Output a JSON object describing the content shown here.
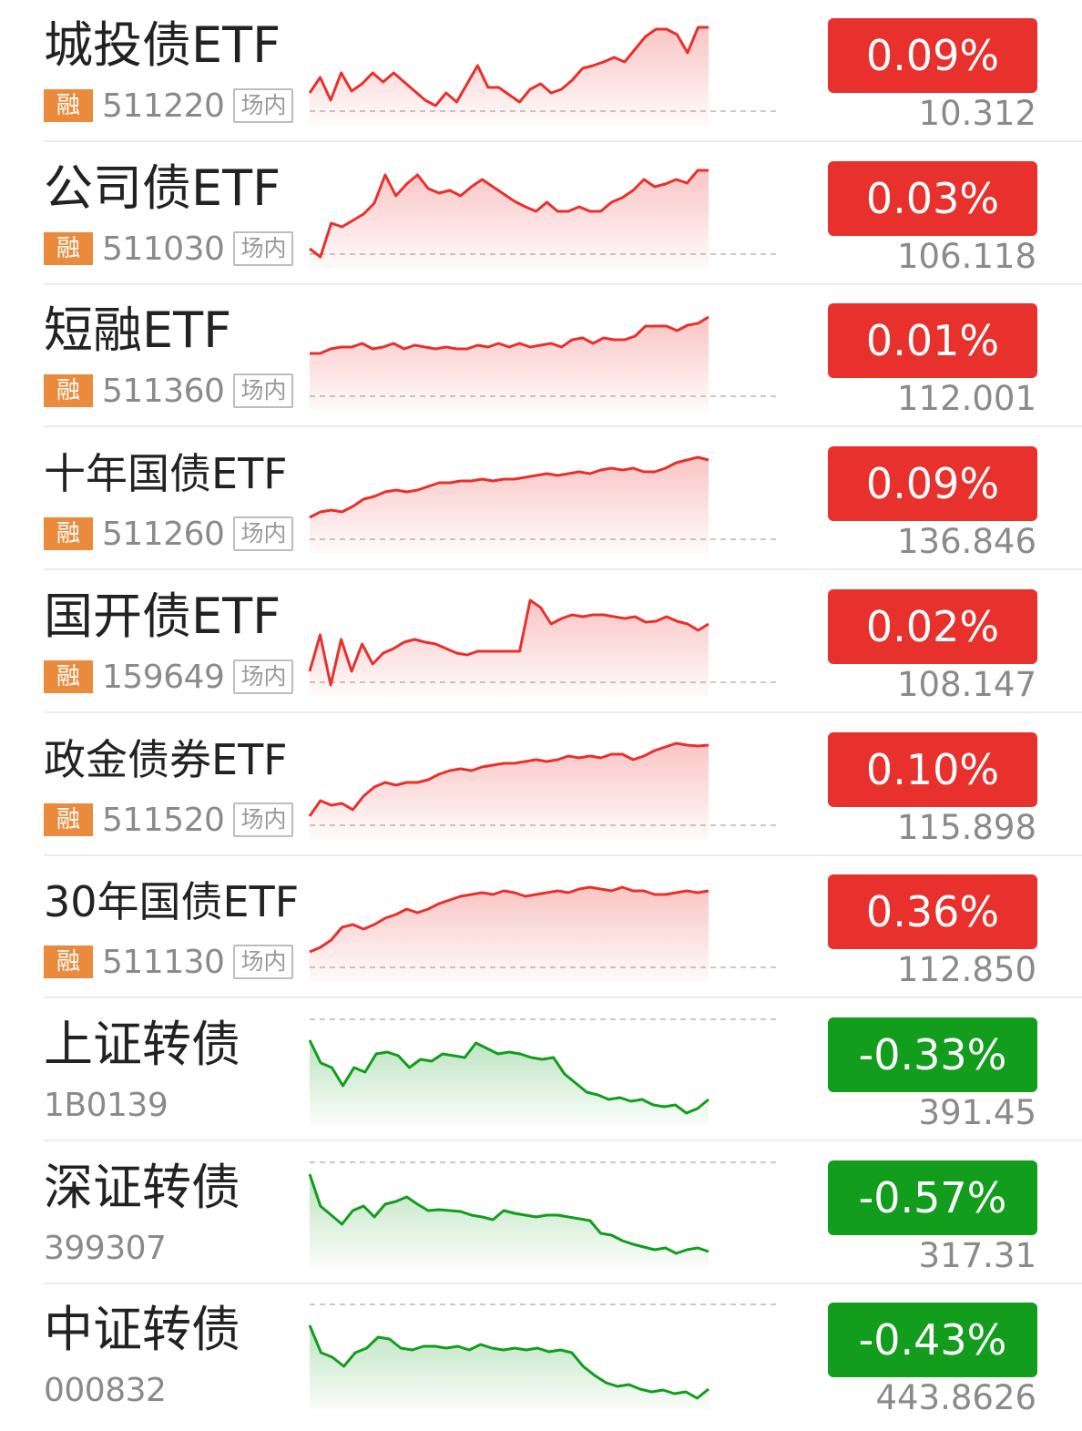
{
  "colors": {
    "up": "#e8302d",
    "down": "#129d1d",
    "tag": "#ea8a3c",
    "grid": "#c9c9c9"
  },
  "rows": [
    {
      "name": "城投债ETF",
      "tag": "融",
      "code": "511220",
      "market": "场内",
      "change": "0.09%",
      "price": "10.312",
      "trend": "up",
      "spark": [
        0.28,
        0.45,
        0.2,
        0.5,
        0.3,
        0.38,
        0.5,
        0.4,
        0.5,
        0.4,
        0.3,
        0.2,
        0.14,
        0.28,
        0.18,
        0.38,
        0.58,
        0.34,
        0.34,
        0.26,
        0.18,
        0.32,
        0.38,
        0.28,
        0.32,
        0.42,
        0.55,
        0.58,
        0.62,
        0.67,
        0.62,
        0.76,
        0.9,
        0.98,
        0.98,
        0.92,
        0.72,
        1.0,
        1.0
      ]
    },
    {
      "name": "公司债ETF",
      "tag": "融",
      "code": "511030",
      "market": "场内",
      "change": "0.03%",
      "price": "106.118",
      "trend": "up",
      "spark": [
        0.14,
        0.05,
        0.42,
        0.38,
        0.45,
        0.52,
        0.64,
        0.95,
        0.72,
        0.85,
        0.95,
        0.8,
        0.75,
        0.78,
        0.72,
        0.82,
        0.9,
        0.82,
        0.74,
        0.66,
        0.6,
        0.55,
        0.65,
        0.55,
        0.55,
        0.6,
        0.55,
        0.55,
        0.65,
        0.7,
        0.78,
        0.9,
        0.82,
        0.85,
        0.9,
        0.86,
        1.0,
        1.0
      ]
    },
    {
      "name": "短融ETF",
      "tag": "融",
      "code": "511360",
      "market": "场内",
      "change": "0.01%",
      "price": "112.001",
      "trend": "up",
      "spark": [
        0.55,
        0.55,
        0.6,
        0.62,
        0.62,
        0.66,
        0.6,
        0.62,
        0.66,
        0.6,
        0.64,
        0.62,
        0.6,
        0.62,
        0.6,
        0.6,
        0.64,
        0.62,
        0.66,
        0.62,
        0.66,
        0.62,
        0.64,
        0.66,
        0.62,
        0.7,
        0.72,
        0.66,
        0.72,
        0.7,
        0.7,
        0.74,
        0.85,
        0.85,
        0.85,
        0.8,
        0.86,
        0.88,
        0.95
      ]
    },
    {
      "name": "十年国债ETF",
      "tag": "融",
      "code": "511260",
      "market": "场内",
      "change": "0.09%",
      "price": "136.846",
      "trend": "up",
      "spark": [
        0.32,
        0.38,
        0.4,
        0.38,
        0.44,
        0.52,
        0.55,
        0.6,
        0.62,
        0.6,
        0.62,
        0.66,
        0.7,
        0.7,
        0.72,
        0.72,
        0.74,
        0.72,
        0.74,
        0.74,
        0.76,
        0.78,
        0.8,
        0.78,
        0.8,
        0.82,
        0.8,
        0.84,
        0.86,
        0.84,
        0.86,
        0.82,
        0.82,
        0.86,
        0.92,
        0.95,
        0.98,
        0.95
      ]
    },
    {
      "name": "国开债ETF",
      "tag": "融",
      "code": "159649",
      "market": "场内",
      "change": "0.02%",
      "price": "108.147",
      "trend": "up",
      "spark": [
        0.2,
        0.6,
        0.05,
        0.55,
        0.2,
        0.5,
        0.28,
        0.4,
        0.45,
        0.52,
        0.55,
        0.52,
        0.5,
        0.45,
        0.4,
        0.38,
        0.42,
        0.42,
        0.42,
        0.42,
        0.42,
        0.98,
        0.9,
        0.72,
        0.78,
        0.82,
        0.8,
        0.82,
        0.82,
        0.8,
        0.78,
        0.8,
        0.74,
        0.75,
        0.8,
        0.75,
        0.72,
        0.65,
        0.72
      ]
    },
    {
      "name": "政金债券ETF",
      "tag": "融",
      "code": "511520",
      "market": "场内",
      "change": "0.10%",
      "price": "115.898",
      "trend": "up",
      "spark": [
        0.18,
        0.35,
        0.3,
        0.32,
        0.25,
        0.4,
        0.5,
        0.55,
        0.52,
        0.55,
        0.55,
        0.58,
        0.64,
        0.68,
        0.7,
        0.68,
        0.72,
        0.74,
        0.76,
        0.76,
        0.78,
        0.8,
        0.78,
        0.8,
        0.84,
        0.82,
        0.84,
        0.82,
        0.86,
        0.86,
        0.8,
        0.84,
        0.9,
        0.94,
        0.98,
        0.96,
        0.95,
        0.96
      ]
    },
    {
      "name": "30年国债ETF",
      "tag": "融",
      "code": "511130",
      "market": "场内",
      "change": "0.36%",
      "price": "112.850",
      "trend": "up",
      "spark": [
        0.25,
        0.3,
        0.38,
        0.52,
        0.55,
        0.5,
        0.55,
        0.62,
        0.66,
        0.72,
        0.68,
        0.72,
        0.78,
        0.82,
        0.86,
        0.88,
        0.9,
        0.88,
        0.92,
        0.9,
        0.86,
        0.88,
        0.9,
        0.92,
        0.9,
        0.94,
        0.96,
        0.94,
        0.92,
        0.96,
        0.92,
        0.92,
        0.88,
        0.88,
        0.9,
        0.92,
        0.9,
        0.92
      ]
    },
    {
      "name": "上证转债",
      "tag": "",
      "code": "1B0139",
      "market": "",
      "change": "-0.33%",
      "price": "391.45",
      "trend": "down",
      "spark": [
        0.85,
        0.6,
        0.55,
        0.35,
        0.55,
        0.5,
        0.7,
        0.72,
        0.68,
        0.55,
        0.64,
        0.62,
        0.7,
        0.68,
        0.66,
        0.82,
        0.76,
        0.7,
        0.72,
        0.7,
        0.66,
        0.64,
        0.66,
        0.48,
        0.38,
        0.28,
        0.25,
        0.2,
        0.22,
        0.18,
        0.2,
        0.14,
        0.12,
        0.14,
        0.05,
        0.1,
        0.2
      ]
    },
    {
      "name": "深证转债",
      "tag": "",
      "code": "399307",
      "market": "",
      "change": "-0.57%",
      "price": "317.31",
      "trend": "down",
      "spark": [
        0.95,
        0.6,
        0.5,
        0.4,
        0.55,
        0.6,
        0.48,
        0.62,
        0.65,
        0.7,
        0.62,
        0.55,
        0.56,
        0.55,
        0.54,
        0.5,
        0.48,
        0.45,
        0.55,
        0.52,
        0.5,
        0.48,
        0.5,
        0.5,
        0.48,
        0.46,
        0.44,
        0.3,
        0.28,
        0.22,
        0.18,
        0.15,
        0.12,
        0.14,
        0.08,
        0.12,
        0.14,
        0.1
      ]
    },
    {
      "name": "中证转债",
      "tag": "",
      "code": "000832",
      "market": "",
      "change": "-0.43%",
      "price": "443.8626",
      "trend": "down",
      "spark": [
        0.85,
        0.55,
        0.5,
        0.4,
        0.55,
        0.6,
        0.72,
        0.7,
        0.6,
        0.58,
        0.62,
        0.62,
        0.6,
        0.62,
        0.58,
        0.64,
        0.6,
        0.58,
        0.6,
        0.58,
        0.6,
        0.56,
        0.58,
        0.55,
        0.4,
        0.3,
        0.22,
        0.18,
        0.2,
        0.15,
        0.12,
        0.14,
        0.1,
        0.12,
        0.05,
        0.15
      ]
    }
  ]
}
